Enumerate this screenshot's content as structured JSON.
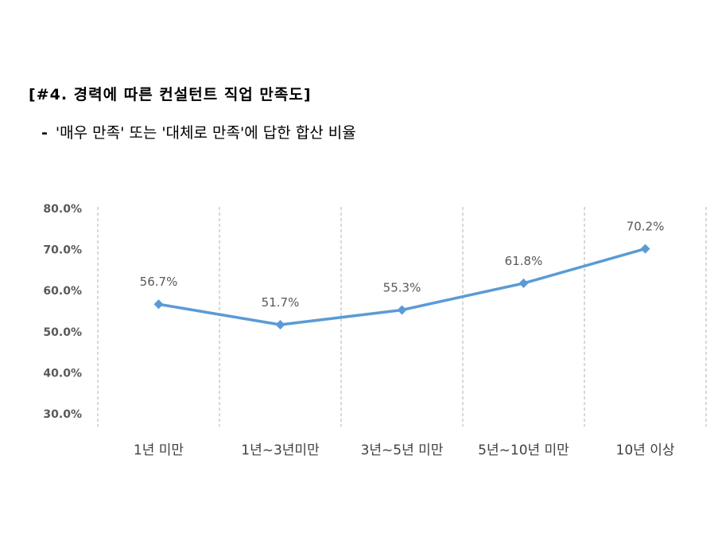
{
  "header": {
    "title": "[#4. 경력에 따른 컨설턴트 직업 만족도]",
    "subtitle_dash": "-",
    "subtitle": "'매우 만족' 또는 '대체로 만족'에 답한 합산 비율"
  },
  "chart_data": {
    "type": "line",
    "title": "",
    "xlabel": "",
    "ylabel": "",
    "categories": [
      "1년 미만",
      "1년~3년미만",
      "3년~5년 미만",
      "5년~10년 미만",
      "10년 이상"
    ],
    "values": [
      56.7,
      51.7,
      55.3,
      61.8,
      70.2
    ],
    "data_labels": [
      "56.7%",
      "51.7%",
      "55.3%",
      "61.8%",
      "70.2%"
    ],
    "ylim": [
      30,
      80
    ],
    "yticks": [
      80,
      70,
      60,
      50,
      40,
      30
    ],
    "ytick_labels": [
      "80.0%",
      "70.0%",
      "60.0%",
      "50.0%",
      "40.0%",
      "30.0%"
    ],
    "grid": "vertical dashed",
    "legend": "none",
    "marker": "diamond",
    "colors": {
      "line": "#5B9BD5",
      "grid": "#BFBFBF",
      "tick_text": "#595959",
      "category_text": "#404040"
    }
  }
}
